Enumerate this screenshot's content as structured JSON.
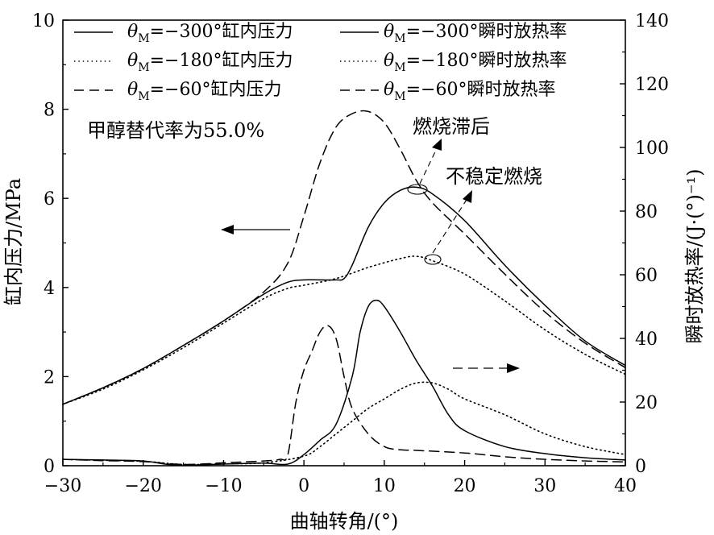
{
  "chart_data": {
    "type": "line",
    "xlabel": "曲轴转角/(°)",
    "ylabel_left": "缸内压力/MPa",
    "ylabel_right": "瞬时放热率/(J·(°)⁻¹)",
    "xlim": [
      -30,
      40
    ],
    "ylim_left": [
      0,
      10
    ],
    "ylim_right": [
      0,
      140
    ],
    "xticks": [
      "−30",
      "−20",
      "−10",
      "0",
      "10",
      "20",
      "30",
      "40"
    ],
    "yticks_left": [
      "0",
      "2",
      "4",
      "6",
      "8",
      "10"
    ],
    "yticks_right": [
      "0",
      "20",
      "40",
      "60",
      "80",
      "100",
      "120",
      "140"
    ],
    "grid": false,
    "legend_position": "top",
    "legend": [
      {
        "prefix": "θ",
        "sub": "M",
        "text": "=−300°缸内压力",
        "style": "solid"
      },
      {
        "prefix": "θ",
        "sub": "M",
        "text": "=−300°瞬时放热率",
        "style": "solid"
      },
      {
        "prefix": "θ",
        "sub": "M",
        "text": "=−180°缸内压力",
        "style": "dotted"
      },
      {
        "prefix": "θ",
        "sub": "M",
        "text": "=−180°瞬时放热率",
        "style": "dotted"
      },
      {
        "prefix": "θ",
        "sub": "M",
        "text": "=−60°缸内压力",
        "style": "dashed"
      },
      {
        "prefix": "θ",
        "sub": "M",
        "text": "=−60°瞬时放热率",
        "style": "dashed"
      }
    ],
    "annotations": {
      "methanol": "甲醇替代率为55.0%",
      "lag": "燃烧滞后",
      "unstable": "不稳定燃烧"
    },
    "series": [
      {
        "name": "θM=−300°缸内压力",
        "axis": "left",
        "style": "solid",
        "x": [
          -30,
          -25,
          -20,
          -15,
          -10,
          -5,
          -2,
          0,
          2,
          4,
          5,
          6,
          8,
          10,
          12,
          14,
          16,
          20,
          25,
          30,
          35,
          40
        ],
        "y": [
          1.38,
          1.75,
          2.18,
          2.7,
          3.25,
          3.85,
          4.12,
          4.17,
          4.17,
          4.17,
          4.2,
          4.5,
          5.35,
          5.9,
          6.18,
          6.25,
          6.1,
          5.5,
          4.5,
          3.6,
          2.8,
          2.25
        ]
      },
      {
        "name": "θM=−180°缸内压力",
        "axis": "left",
        "style": "dotted",
        "x": [
          -30,
          -25,
          -20,
          -15,
          -10,
          -5,
          -2,
          0,
          4,
          8,
          12,
          14,
          16,
          20,
          25,
          30,
          35,
          40
        ],
        "y": [
          1.38,
          1.72,
          2.15,
          2.65,
          3.2,
          3.75,
          3.98,
          4.05,
          4.2,
          4.45,
          4.65,
          4.7,
          4.6,
          4.3,
          3.7,
          3.05,
          2.5,
          2.05
        ]
      },
      {
        "name": "θM=−60°缸内压力",
        "axis": "left",
        "style": "dashed",
        "x": [
          -30,
          -25,
          -20,
          -15,
          -10,
          -5,
          -2,
          0,
          2,
          4,
          6,
          8,
          10,
          12,
          14,
          16,
          20,
          25,
          30,
          35,
          40
        ],
        "y": [
          1.38,
          1.75,
          2.18,
          2.7,
          3.25,
          3.9,
          4.55,
          5.6,
          6.8,
          7.6,
          7.9,
          7.95,
          7.7,
          7.1,
          6.4,
          5.9,
          5.2,
          4.3,
          3.45,
          2.75,
          2.2
        ]
      },
      {
        "name": "θM=−300°瞬时放热率",
        "axis": "right",
        "style": "solid",
        "x": [
          -30,
          -25,
          -20,
          -16,
          -10,
          -5,
          -2,
          0,
          2,
          4,
          6,
          7,
          8,
          9,
          10,
          12,
          14,
          16,
          18,
          20,
          25,
          30,
          35,
          40
        ],
        "y": [
          2,
          1.8,
          1.5,
          0.2,
          0.5,
          0.8,
          0.5,
          3.5,
          8,
          13,
          28,
          42,
          50,
          52,
          50,
          42,
          33,
          25,
          16,
          11,
          6,
          3.8,
          2.5,
          1.8
        ]
      },
      {
        "name": "θM=−180°瞬时放热率",
        "axis": "right",
        "style": "dotted",
        "x": [
          -30,
          -25,
          -20,
          -15,
          -10,
          -5,
          0,
          2,
          4,
          6,
          8,
          10,
          12,
          14,
          16,
          18,
          20,
          25,
          30,
          35,
          40
        ],
        "y": [
          2,
          1.7,
          1.4,
          0.4,
          0.6,
          0.9,
          3,
          6,
          10,
          14,
          18,
          21,
          24,
          26,
          26,
          24,
          21,
          16,
          10,
          6,
          3.5
        ]
      },
      {
        "name": "θM=−60°瞬时放热率",
        "axis": "right",
        "style": "dashed",
        "x": [
          -30,
          -25,
          -20,
          -15,
          -10,
          -5,
          -3,
          -2,
          -1,
          0,
          1,
          2,
          3,
          4,
          5,
          6,
          8,
          10,
          12,
          14,
          20,
          25,
          30,
          35,
          40
        ],
        "y": [
          2,
          1.6,
          1.3,
          0.4,
          0.9,
          1.5,
          2,
          3.5,
          20,
          30,
          36,
          42,
          44,
          40,
          28,
          18,
          10,
          6,
          5,
          4.8,
          4,
          2.8,
          2,
          1.5,
          1.2
        ]
      }
    ]
  }
}
